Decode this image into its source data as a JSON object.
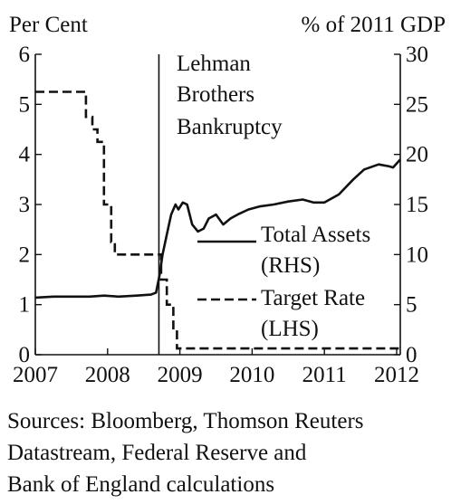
{
  "chart_data": {
    "type": "line",
    "left_axis_label": "Per Cent",
    "right_axis_label": "% of 2011 GDP",
    "left_ylim": [
      0,
      6
    ],
    "right_ylim": [
      0,
      30
    ],
    "left_ticks": [
      "0",
      "1",
      "2",
      "3",
      "4",
      "5",
      "6"
    ],
    "right_ticks": [
      "0",
      "5",
      "10",
      "15",
      "20",
      "25",
      "30"
    ],
    "xlim": [
      2007,
      2012.05
    ],
    "x_ticks": [
      "2007",
      "2008",
      "2009",
      "2010",
      "2011",
      "2012"
    ],
    "vline": {
      "x": 2008.71,
      "label_lines": [
        "Lehman",
        "Brothers",
        "Bankruptcy"
      ]
    },
    "series": [
      {
        "name": "Total Assets (RHS)",
        "legend_lines": [
          "Total Assets",
          "(RHS)"
        ],
        "axis": "right",
        "style": "solid",
        "x": [
          2007.0,
          2007.25,
          2007.5,
          2007.75,
          2007.95,
          2008.15,
          2008.4,
          2008.6,
          2008.67,
          2008.72,
          2008.76,
          2008.82,
          2008.88,
          2008.94,
          2008.98,
          2009.04,
          2009.1,
          2009.17,
          2009.25,
          2009.33,
          2009.4,
          2009.5,
          2009.6,
          2009.7,
          2009.8,
          2009.95,
          2010.1,
          2010.3,
          2010.5,
          2010.7,
          2010.85,
          2011.0,
          2011.2,
          2011.4,
          2011.55,
          2011.75,
          2011.9,
          2011.95,
          2012.05
        ],
        "values": [
          5.7,
          5.8,
          5.8,
          5.8,
          5.9,
          5.8,
          5.9,
          6.0,
          6.2,
          8.0,
          10.0,
          12.0,
          14.0,
          15.0,
          14.5,
          15.2,
          15.0,
          13.0,
          12.3,
          12.6,
          13.6,
          14.0,
          13.0,
          13.6,
          14.0,
          14.5,
          14.8,
          15.0,
          15.3,
          15.5,
          15.2,
          15.2,
          16.0,
          17.5,
          18.5,
          19.0,
          18.8,
          18.7,
          19.5
        ]
      },
      {
        "name": "Target Rate (LHS)",
        "legend_lines": [
          "Target Rate",
          "(LHS)"
        ],
        "axis": "left",
        "style": "dashed",
        "x": [
          2007.0,
          2007.7,
          2007.7,
          2007.79,
          2007.79,
          2007.86,
          2007.86,
          2007.95,
          2007.95,
          2008.05,
          2008.05,
          2008.1,
          2008.1,
          2008.25,
          2008.25,
          2008.33,
          2008.33,
          2008.74,
          2008.74,
          2008.82,
          2008.82,
          2008.91,
          2008.91,
          2008.96,
          2008.96,
          2012.05
        ],
        "values": [
          5.25,
          5.25,
          4.75,
          4.75,
          4.5,
          4.5,
          4.25,
          4.25,
          3.0,
          3.0,
          2.25,
          2.25,
          2.0,
          2.0,
          2.0,
          2.0,
          2.0,
          2.0,
          1.5,
          1.5,
          1.0,
          1.0,
          0.5,
          0.5,
          0.125,
          0.125
        ]
      }
    ]
  },
  "sources": {
    "line1": "Sources: Bloomberg, Thomson Reuters",
    "line2": "Datastream, Federal Reserve and",
    "line3": "Bank of England calculations"
  }
}
